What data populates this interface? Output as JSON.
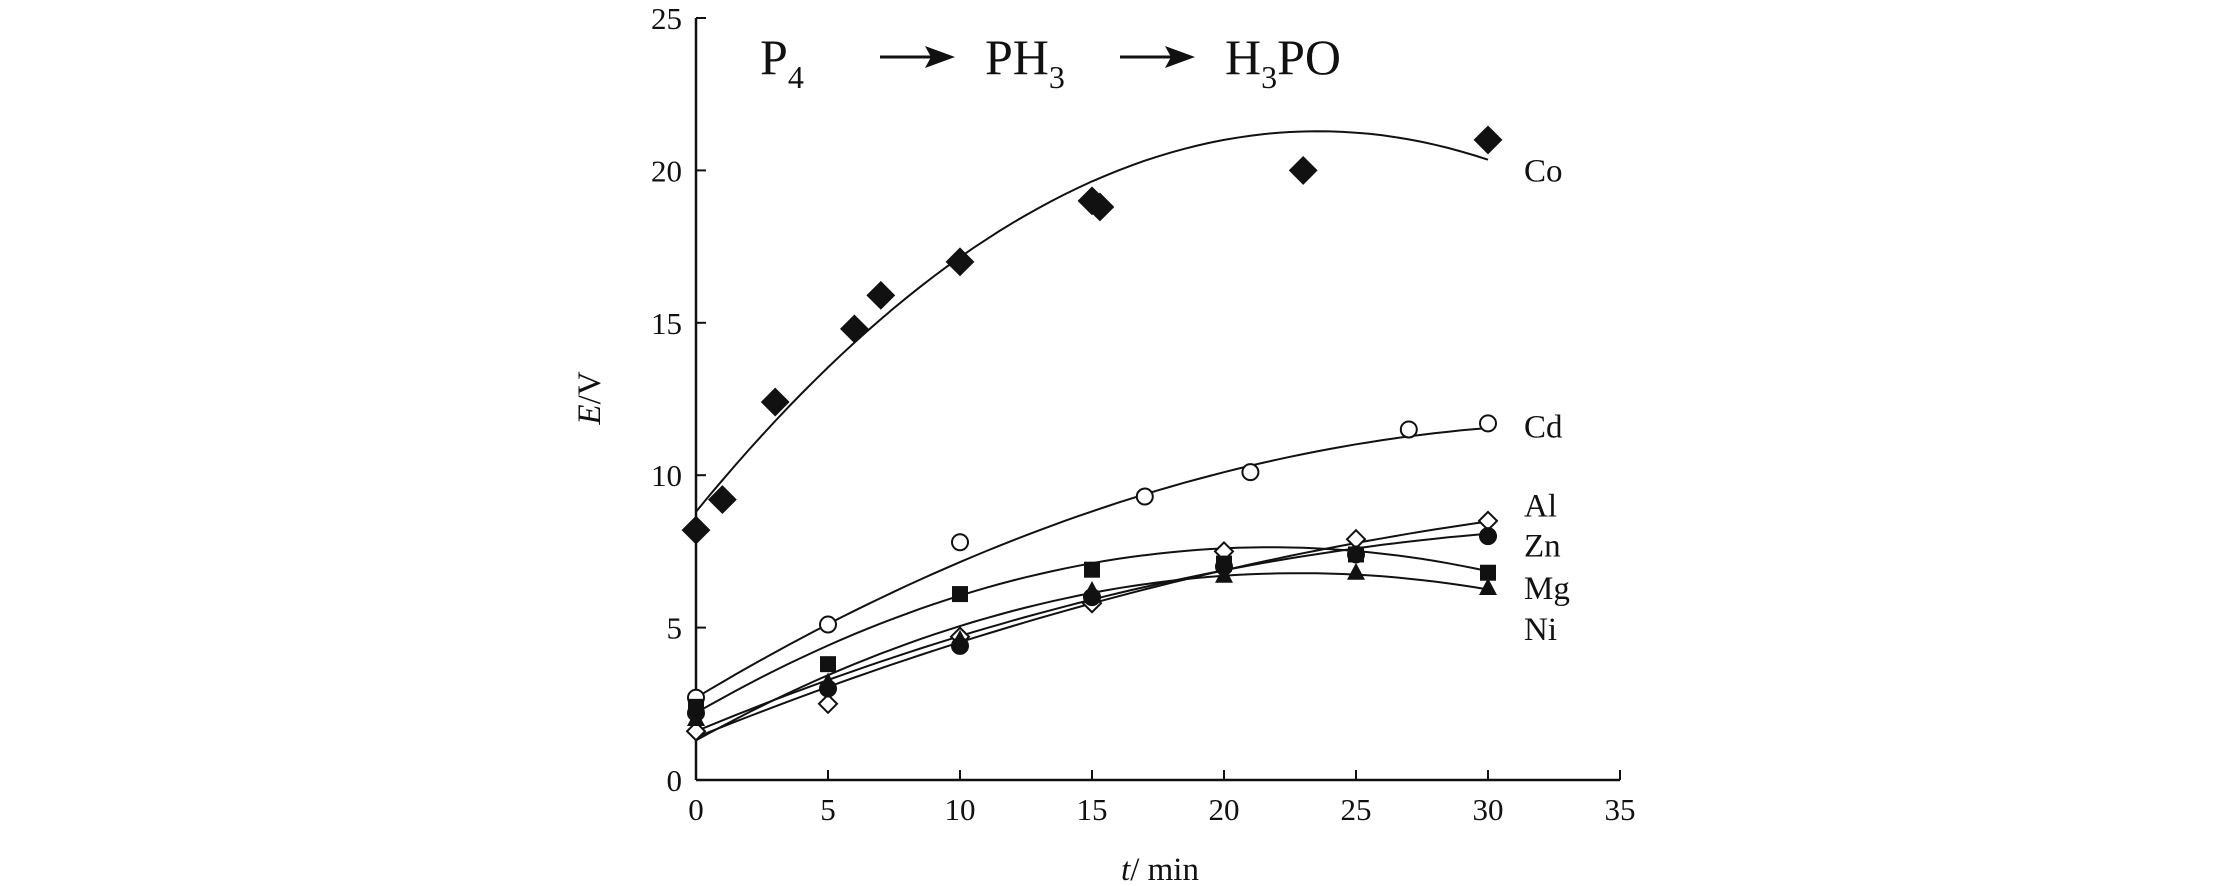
{
  "chart_data": {
    "type": "scatter",
    "title_parts": {
      "a": "P",
      "a_sub": "4",
      "b": "PH",
      "b_sub": "3",
      "c_pre": "H",
      "c_sub": "3",
      "c_post": "PO"
    },
    "xlabel_italic": "t",
    "xlabel_rest": "/ min",
    "ylabel_italic": "E",
    "ylabel_rest": "/V",
    "xlim": [
      0,
      35
    ],
    "ylim": [
      0,
      25
    ],
    "xticks": [
      "0",
      "5",
      "10",
      "15",
      "20",
      "25",
      "30",
      "35"
    ],
    "yticks": [
      "0",
      "5",
      "10",
      "15",
      "20",
      "25"
    ],
    "grid": false,
    "series": [
      {
        "name": "Co",
        "marker": "diamond-filled",
        "x": [
          0,
          1,
          3,
          6,
          7,
          10,
          15,
          15.3,
          23,
          30
        ],
        "y": [
          8.2,
          9.2,
          12.4,
          14.8,
          15.9,
          17.0,
          19.0,
          18.8,
          20.0,
          21.0
        ],
        "fit": [
          8.8,
          1.06,
          -0.0225
        ]
      },
      {
        "name": "Cd",
        "marker": "circle-open",
        "x": [
          0,
          5,
          10,
          17,
          21,
          27,
          30
        ],
        "y": [
          2.7,
          5.1,
          7.8,
          9.3,
          10.1,
          11.5,
          11.7
        ],
        "fit": [
          2.7,
          0.52,
          -0.0075
        ]
      },
      {
        "name": "Al",
        "marker": "diamond-open",
        "x": [
          0,
          5,
          10,
          15,
          20,
          25,
          30
        ],
        "y": [
          1.6,
          2.5,
          4.7,
          5.8,
          7.5,
          7.9,
          8.5
        ],
        "fit": [
          1.4,
          0.35,
          -0.0038
        ]
      },
      {
        "name": "Zn",
        "marker": "circle-filled",
        "x": [
          0,
          5,
          10,
          15,
          20,
          25,
          30
        ],
        "y": [
          2.2,
          3.0,
          4.4,
          6.0,
          7.0,
          7.4,
          8.0
        ],
        "fit": [
          1.6,
          0.36,
          -0.0048
        ]
      },
      {
        "name": "Mg",
        "marker": "square-filled",
        "x": [
          0,
          5,
          10,
          15,
          20,
          25,
          30
        ],
        "y": [
          2.4,
          3.8,
          6.1,
          6.9,
          7.1,
          7.4,
          6.8
        ],
        "fit": [
          2.2,
          0.5,
          -0.0115
        ]
      },
      {
        "name": "Ni",
        "marker": "triangle-filled",
        "x": [
          0,
          5,
          10,
          15,
          20,
          25,
          30
        ],
        "y": [
          2.0,
          3.2,
          4.6,
          6.2,
          6.7,
          6.8,
          6.3
        ],
        "fit": [
          1.3,
          0.48,
          -0.0105
        ]
      }
    ]
  }
}
